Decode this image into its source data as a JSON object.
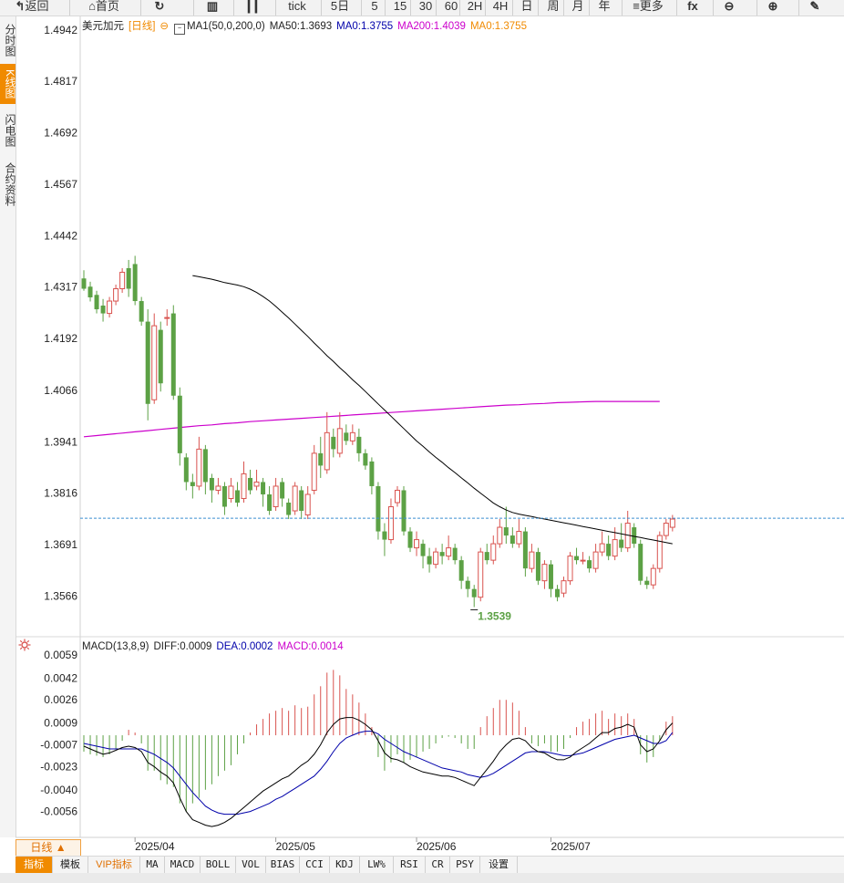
{
  "toolbar": {
    "items": [
      {
        "label": "返回",
        "icon": "back-icon"
      },
      {
        "label": "首页",
        "icon": "home-icon"
      },
      {
        "label": "",
        "icon": "refresh-icon"
      },
      {
        "label": "",
        "icon": "bar-chart-icon"
      },
      {
        "label": "",
        "icon": "candlestick-icon"
      },
      {
        "label": "tick",
        "icon": ""
      },
      {
        "label": "5日",
        "icon": ""
      },
      {
        "label": "5",
        "icon": ""
      },
      {
        "label": "15",
        "icon": ""
      },
      {
        "label": "30",
        "icon": ""
      },
      {
        "label": "60",
        "icon": ""
      },
      {
        "label": "2H",
        "icon": ""
      },
      {
        "label": "4H",
        "icon": ""
      },
      {
        "label": "日",
        "icon": ""
      },
      {
        "label": "周",
        "icon": ""
      },
      {
        "label": "月",
        "icon": ""
      },
      {
        "label": "年",
        "icon": ""
      },
      {
        "label": "更多",
        "icon": "menu-icon"
      },
      {
        "label": "",
        "icon": "formula-icon"
      },
      {
        "label": "",
        "icon": "zoom-out-icon"
      },
      {
        "label": "",
        "icon": "zoom-in-icon"
      },
      {
        "label": "",
        "icon": "pen-icon"
      }
    ]
  },
  "left_tabs": [
    "分时图",
    "K线图",
    "闪电图",
    "合约资料"
  ],
  "main_legend": {
    "symbol": "美元加元",
    "period": "[日线]",
    "ma1": "MA1(50,0,200,0)",
    "ma50": "MA50:1.3693",
    "ma0a": "MA0:1.3755",
    "ma200": "MA200:1.4039",
    "ma0b": "MA0:1.3755"
  },
  "macd_legend": {
    "name": "MACD(13,8,9)",
    "diff": "DIFF:0.0009",
    "dea": "DEA:0.0002",
    "macd": "MACD:0.0014"
  },
  "colors": {
    "up": "#d9534f",
    "down": "#5ca145",
    "ma50": "#000000",
    "ma200": "#cc00cc",
    "dea": "#0000aa",
    "ma0": "#f08a00",
    "current": "#3b8fd1"
  },
  "bottom": {
    "period_button": "日线 ▲",
    "indicators": [
      "指标",
      "模板",
      "VIP指标",
      "MA",
      "MACD",
      "BOLL",
      "VOL",
      "BIAS",
      "CCI",
      "KDJ",
      "LW%",
      "RSI",
      "CR",
      "PSY",
      "设置"
    ]
  },
  "chart_data": {
    "type": "candlestick",
    "y_ticks": [
      "1.4942",
      "1.4817",
      "1.4692",
      "1.4567",
      "1.4442",
      "1.4317",
      "1.4192",
      "1.4066",
      "1.3941",
      "1.3816",
      "1.3691",
      "1.3566"
    ],
    "ylim": [
      1.3467,
      1.4975
    ],
    "x_ticks": [
      "2025/04",
      "2025/05",
      "2025/06",
      "2025/07"
    ],
    "current_price": 1.3755,
    "low_annotation": {
      "label": "1.3539",
      "value": 1.3539
    },
    "candles": [
      [
        1.4338,
        1.4313,
        1.4358,
        1.4308
      ],
      [
        1.4318,
        1.4292,
        1.433,
        1.4282
      ],
      [
        1.4298,
        1.4263,
        1.4308,
        1.4253
      ],
      [
        1.4272,
        1.4253,
        1.4288,
        1.4233
      ],
      [
        1.4253,
        1.4283,
        1.4293,
        1.4243
      ],
      [
        1.4283,
        1.4313,
        1.4323,
        1.4273
      ],
      [
        1.4313,
        1.4353,
        1.4363,
        1.4303
      ],
      [
        1.4363,
        1.4313,
        1.4383,
        1.4293
      ],
      [
        1.4373,
        1.4283,
        1.4393,
        1.4273
      ],
      [
        1.4283,
        1.4233,
        1.4293,
        1.4223
      ],
      [
        1.4233,
        1.4033,
        1.4263,
        1.3993
      ],
      [
        1.4043,
        1.4223,
        1.4253,
        1.4033
      ],
      [
        1.4213,
        1.4083,
        1.4233,
        1.4063
      ],
      [
        1.4243,
        1.4243,
        1.4263,
        1.4223
      ],
      [
        1.4253,
        1.4053,
        1.4273,
        1.4043
      ],
      [
        1.4053,
        1.3913,
        1.4073,
        1.3883
      ],
      [
        1.3903,
        1.3843,
        1.3913,
        1.3823
      ],
      [
        1.3843,
        1.3833,
        1.3863,
        1.3803
      ],
      [
        1.3833,
        1.3923,
        1.3953,
        1.3823
      ],
      [
        1.3923,
        1.3843,
        1.3933,
        1.3813
      ],
      [
        1.3853,
        1.3823,
        1.3863,
        1.3793
      ],
      [
        1.3823,
        1.3833,
        1.3853,
        1.3813
      ],
      [
        1.3833,
        1.3783,
        1.3843,
        1.3763
      ],
      [
        1.3803,
        1.3833,
        1.3853,
        1.3793
      ],
      [
        1.3823,
        1.3793,
        1.3843,
        1.3783
      ],
      [
        1.3803,
        1.3863,
        1.3893,
        1.3793
      ],
      [
        1.3853,
        1.3823,
        1.3873,
        1.3813
      ],
      [
        1.3833,
        1.3843,
        1.3873,
        1.3823
      ],
      [
        1.3843,
        1.3813,
        1.3853,
        1.3783
      ],
      [
        1.3813,
        1.3773,
        1.3833,
        1.3763
      ],
      [
        1.3783,
        1.3833,
        1.3853,
        1.3773
      ],
      [
        1.3843,
        1.3803,
        1.3853,
        1.3783
      ],
      [
        1.3793,
        1.3763,
        1.3803,
        1.3753
      ],
      [
        1.3773,
        1.3833,
        1.3843,
        1.3763
      ],
      [
        1.3823,
        1.3773,
        1.3833,
        1.3753
      ],
      [
        1.3763,
        1.3813,
        1.3833,
        1.3753
      ],
      [
        1.3823,
        1.3913,
        1.3933,
        1.3813
      ],
      [
        1.3913,
        1.3883,
        1.3953,
        1.3853
      ],
      [
        1.3873,
        1.3963,
        1.4013,
        1.3863
      ],
      [
        1.3953,
        1.3923,
        1.3973,
        1.3903
      ],
      [
        1.3913,
        1.3973,
        1.4013,
        1.3903
      ],
      [
        1.3963,
        1.3943,
        1.3983,
        1.3933
      ],
      [
        1.3943,
        1.3963,
        1.3983,
        1.3933
      ],
      [
        1.3953,
        1.3913,
        1.3973,
        1.3893
      ],
      [
        1.3913,
        1.3883,
        1.3923,
        1.3873
      ],
      [
        1.3893,
        1.3833,
        1.3903,
        1.3813
      ],
      [
        1.3833,
        1.3723,
        1.3843,
        1.3703
      ],
      [
        1.3723,
        1.3703,
        1.3743,
        1.3663
      ],
      [
        1.3703,
        1.3783,
        1.3803,
        1.3693
      ],
      [
        1.3793,
        1.3823,
        1.3833,
        1.3783
      ],
      [
        1.3823,
        1.3723,
        1.3833,
        1.3713
      ],
      [
        1.3723,
        1.3683,
        1.3733,
        1.3673
      ],
      [
        1.3683,
        1.3703,
        1.3723,
        1.3663
      ],
      [
        1.3693,
        1.3663,
        1.3703,
        1.3633
      ],
      [
        1.3663,
        1.3643,
        1.3683,
        1.3623
      ],
      [
        1.3643,
        1.3673,
        1.3683,
        1.3633
      ],
      [
        1.3673,
        1.3663,
        1.3693,
        1.3643
      ],
      [
        1.3663,
        1.3683,
        1.3713,
        1.3653
      ],
      [
        1.3683,
        1.3653,
        1.3693,
        1.3643
      ],
      [
        1.3653,
        1.3603,
        1.3663,
        1.3583
      ],
      [
        1.3603,
        1.3583,
        1.3613,
        1.3563
      ],
      [
        1.3583,
        1.3563,
        1.3593,
        1.3539
      ],
      [
        1.3563,
        1.3673,
        1.3683,
        1.3553
      ],
      [
        1.3673,
        1.3653,
        1.3693,
        1.3643
      ],
      [
        1.3653,
        1.3693,
        1.3713,
        1.3643
      ],
      [
        1.3693,
        1.3733,
        1.3753,
        1.3683
      ],
      [
        1.3733,
        1.3713,
        1.3783,
        1.3693
      ],
      [
        1.3713,
        1.3693,
        1.3733,
        1.3683
      ],
      [
        1.3693,
        1.3723,
        1.3753,
        1.3683
      ],
      [
        1.3723,
        1.3633,
        1.3733,
        1.3613
      ],
      [
        1.3633,
        1.3673,
        1.3693,
        1.3623
      ],
      [
        1.3673,
        1.3603,
        1.3683,
        1.3593
      ],
      [
        1.3603,
        1.3643,
        1.3653,
        1.3583
      ],
      [
        1.3643,
        1.3583,
        1.3653,
        1.3563
      ],
      [
        1.3583,
        1.3563,
        1.3593,
        1.3553
      ],
      [
        1.3573,
        1.3603,
        1.3613,
        1.3563
      ],
      [
        1.3603,
        1.3663,
        1.3673,
        1.3593
      ],
      [
        1.3663,
        1.3653,
        1.3683,
        1.3643
      ],
      [
        1.3653,
        1.3653,
        1.3673,
        1.3643
      ],
      [
        1.3653,
        1.3633,
        1.3663,
        1.3623
      ],
      [
        1.3633,
        1.3673,
        1.3693,
        1.3623
      ],
      [
        1.3673,
        1.3693,
        1.3723,
        1.3663
      ],
      [
        1.3693,
        1.3663,
        1.3713,
        1.3653
      ],
      [
        1.3663,
        1.3703,
        1.3733,
        1.3653
      ],
      [
        1.3703,
        1.3683,
        1.3743,
        1.3673
      ],
      [
        1.3683,
        1.3743,
        1.3773,
        1.3673
      ],
      [
        1.3733,
        1.3693,
        1.3743,
        1.3683
      ],
      [
        1.3693,
        1.3603,
        1.3703,
        1.3593
      ],
      [
        1.3603,
        1.3593,
        1.3613,
        1.3583
      ],
      [
        1.3593,
        1.3633,
        1.3643,
        1.3583
      ],
      [
        1.3633,
        1.3713,
        1.3723,
        1.3623
      ],
      [
        1.3713,
        1.3743,
        1.3753,
        1.3703
      ],
      [
        1.3733,
        1.3753,
        1.3763,
        1.3723
      ]
    ],
    "ma50": [
      1.4345,
      1.4342,
      1.4339,
      1.4336,
      1.4332,
      1.4328,
      1.4325,
      1.4322,
      1.4318,
      1.4312,
      1.4304,
      1.4294,
      1.4283,
      1.427,
      1.4256,
      1.4242,
      1.4227,
      1.4212,
      1.4197,
      1.4181,
      1.4166,
      1.415,
      1.4136,
      1.4121,
      1.4107,
      1.4092,
      1.4078,
      1.4063,
      1.4048,
      1.4033,
      1.4018,
      1.4003,
      1.3988,
      1.3973,
      1.3958,
      1.3943,
      1.393,
      1.3916,
      1.3903,
      1.3891,
      1.3878,
      1.3866,
      1.3853,
      1.3841,
      1.3828,
      1.3816,
      1.3804,
      1.3792,
      1.3783,
      1.3775,
      1.3769,
      1.3765,
      1.3762,
      1.3759,
      1.3756,
      1.3753,
      1.375,
      1.3747,
      1.3744,
      1.3741,
      1.3738,
      1.3735,
      1.3732,
      1.3729,
      1.3726,
      1.3723,
      1.372,
      1.3717,
      1.3714,
      1.3711,
      1.3708,
      1.3705,
      1.3702,
      1.3699,
      1.3696,
      1.3693
    ],
    "ma200": [
      1.3953,
      1.3956,
      1.3959,
      1.3962,
      1.3965,
      1.3968,
      1.3971,
      1.3974,
      1.3977,
      1.398,
      1.3982,
      1.3985,
      1.3987,
      1.399,
      1.3992,
      1.3994,
      1.3996,
      1.3998,
      1.4,
      1.4002,
      1.4004,
      1.4006,
      1.4008,
      1.401,
      1.4012,
      1.4014,
      1.4016,
      1.4018,
      1.402,
      1.4022,
      1.4024,
      1.4026,
      1.4028,
      1.403,
      1.4031,
      1.4033,
      1.4034,
      1.4036,
      1.4037,
      1.4038,
      1.4039,
      1.4039,
      1.4039,
      1.4039,
      1.4039,
      1.4039
    ],
    "macd_y_ticks": [
      "0.0059",
      "0.0042",
      "0.0026",
      "0.0009",
      "-0.0007",
      "-0.0023",
      "-0.0040",
      "-0.0056"
    ],
    "macd_ylim": [
      -0.0075,
      0.0063
    ],
    "macd_hist": [
      -0.0012,
      -0.0014,
      -0.0015,
      -0.0016,
      -0.0014,
      -0.001,
      -0.0004,
      0.0004,
      0.0002,
      -0.0006,
      -0.0026,
      -0.0026,
      -0.0033,
      -0.0036,
      -0.0038,
      -0.005,
      -0.0056,
      -0.005,
      -0.0046,
      -0.004,
      -0.0036,
      -0.003,
      -0.0026,
      -0.0022,
      -0.0014,
      -0.0006,
      0.0002,
      0.0008,
      0.0012,
      0.0016,
      0.0018,
      0.002,
      0.0018,
      0.0022,
      0.002,
      0.0021,
      0.003,
      0.0036,
      0.0046,
      0.0048,
      0.0044,
      0.0034,
      0.003,
      0.0024,
      0.0016,
      0.0006,
      -0.0016,
      -0.0026,
      -0.002,
      -0.0014,
      -0.002,
      -0.0018,
      -0.0016,
      -0.0012,
      -0.001,
      -0.0006,
      -0.0002,
      -0.0001,
      -0.0002,
      -0.0006,
      -0.001,
      -0.001,
      0.0006,
      0.0014,
      0.002,
      0.0026,
      0.0026,
      0.0024,
      0.0018,
      0.0006,
      -0.0006,
      -0.0008,
      -0.0006,
      -0.0012,
      -0.0012,
      -0.001,
      -0.0002,
      0.0006,
      0.001,
      0.0012,
      0.0016,
      0.0018,
      0.0012,
      0.0016,
      0.0014,
      0.0016,
      0.0012,
      -0.0014,
      -0.002,
      -0.0016,
      -0.0004,
      0.001,
      0.0014
    ],
    "macd_diff": [
      -0.0008,
      -0.001,
      -0.0012,
      -0.0014,
      -0.0013,
      -0.0011,
      -0.0009,
      -0.0008,
      -0.0009,
      -0.0012,
      -0.002,
      -0.0023,
      -0.0027,
      -0.003,
      -0.0035,
      -0.0046,
      -0.0056,
      -0.0062,
      -0.0064,
      -0.0066,
      -0.0067,
      -0.0066,
      -0.0064,
      -0.0061,
      -0.0057,
      -0.0053,
      -0.0049,
      -0.0045,
      -0.0041,
      -0.0038,
      -0.0035,
      -0.0032,
      -0.003,
      -0.0026,
      -0.0022,
      -0.0019,
      -0.0014,
      -0.0007,
      0.0002,
      0.0008,
      0.0012,
      0.0013,
      0.0013,
      0.0011,
      0.0008,
      0.0004,
      -0.0004,
      -0.0013,
      -0.0017,
      -0.0018,
      -0.002,
      -0.0023,
      -0.0025,
      -0.0027,
      -0.0028,
      -0.0029,
      -0.003,
      -0.003,
      -0.0031,
      -0.0033,
      -0.0035,
      -0.0037,
      -0.0031,
      -0.0025,
      -0.0019,
      -0.0012,
      -0.0007,
      -0.0003,
      -0.0002,
      -0.0004,
      -0.0009,
      -0.0012,
      -0.0013,
      -0.0016,
      -0.0018,
      -0.0018,
      -0.0016,
      -0.0012,
      -0.0009,
      -0.0006,
      -0.0002,
      0.0002,
      0.0002,
      0.0005,
      0.0006,
      0.0008,
      0.0006,
      -0.0007,
      -0.0012,
      -0.001,
      -0.0004,
      0.0004,
      0.0009
    ],
    "macd_dea": [
      -0.0006,
      -0.0007,
      -0.0008,
      -0.0009,
      -0.001,
      -0.001,
      -0.001,
      -0.001,
      -0.001,
      -0.001,
      -0.0012,
      -0.0014,
      -0.0017,
      -0.002,
      -0.0024,
      -0.003,
      -0.0036,
      -0.0042,
      -0.0047,
      -0.0052,
      -0.0055,
      -0.0057,
      -0.0058,
      -0.0058,
      -0.0058,
      -0.0057,
      -0.0056,
      -0.0054,
      -0.0052,
      -0.005,
      -0.0047,
      -0.0045,
      -0.0042,
      -0.0039,
      -0.0036,
      -0.0033,
      -0.003,
      -0.0025,
      -0.0019,
      -0.0012,
      -0.0006,
      -0.0002,
      0.0,
      0.0002,
      0.0003,
      0.0003,
      0.0001,
      -0.0003,
      -0.0006,
      -0.0009,
      -0.0012,
      -0.0014,
      -0.0016,
      -0.0018,
      -0.002,
      -0.0022,
      -0.0024,
      -0.0025,
      -0.0026,
      -0.0027,
      -0.0029,
      -0.003,
      -0.0031,
      -0.003,
      -0.0028,
      -0.0025,
      -0.0022,
      -0.0019,
      -0.0016,
      -0.0013,
      -0.0012,
      -0.0012,
      -0.0012,
      -0.0013,
      -0.0014,
      -0.0015,
      -0.0015,
      -0.0014,
      -0.0013,
      -0.0011,
      -0.0009,
      -0.0007,
      -0.0005,
      -0.0003,
      -0.0002,
      -0.0001,
      0.0,
      -0.0002,
      -0.0004,
      -0.0006,
      -0.0006,
      -0.0004,
      0.0002
    ]
  }
}
